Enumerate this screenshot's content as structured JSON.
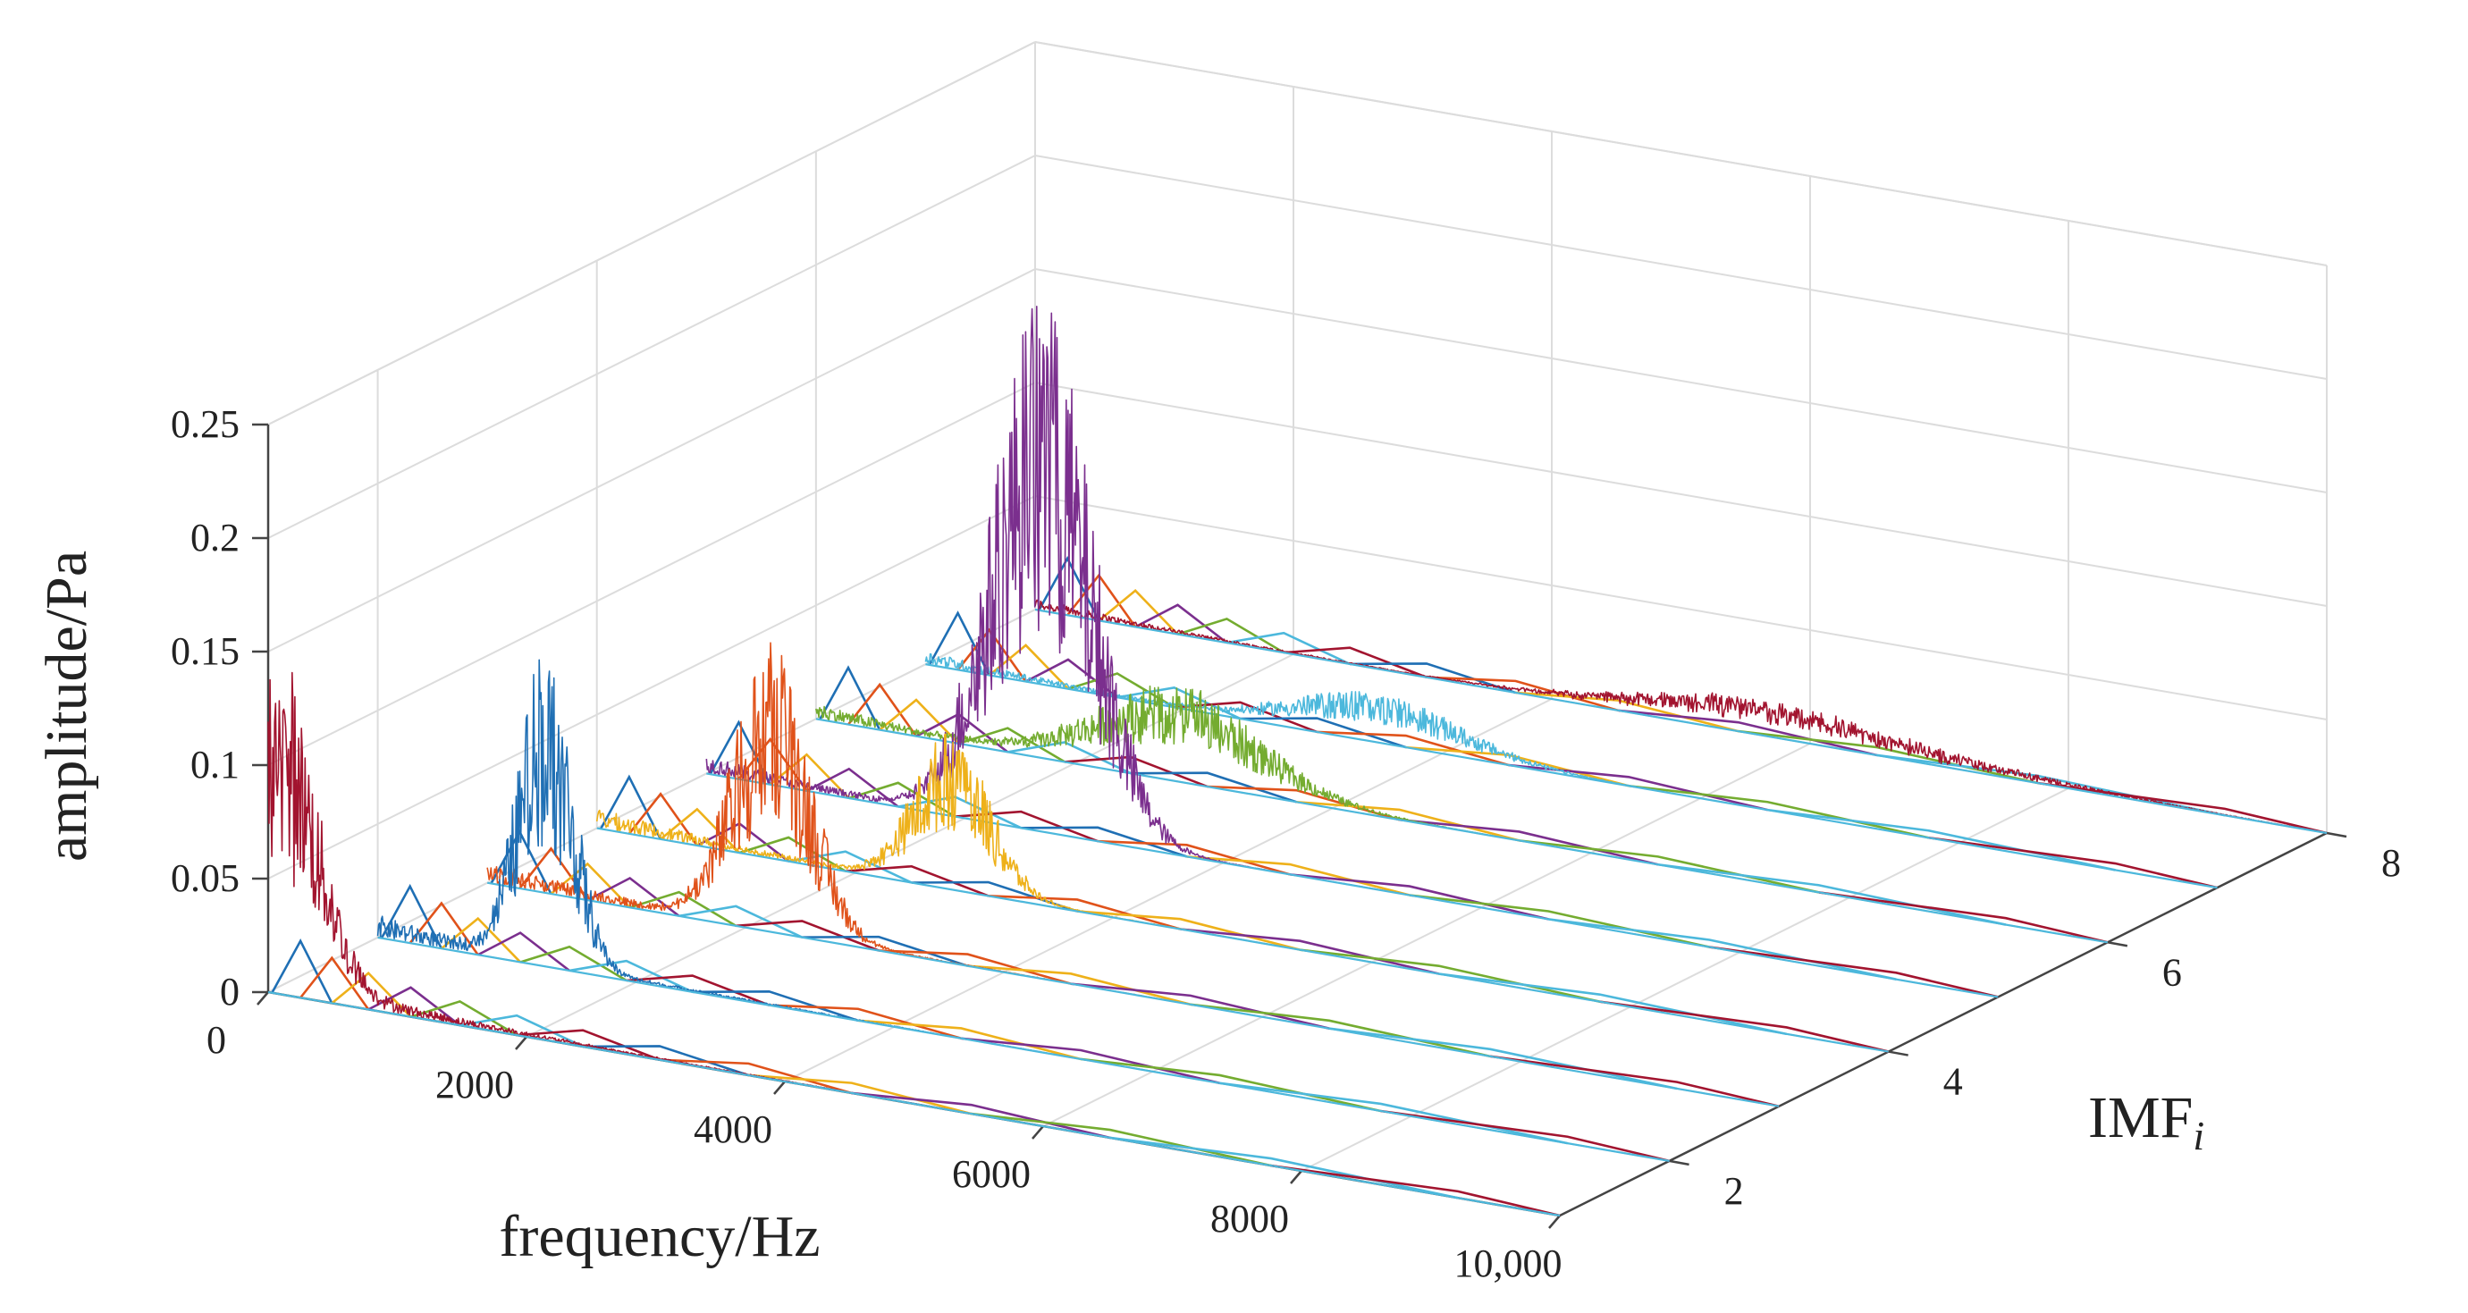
{
  "chart_data": {
    "type": "line",
    "projection": "3d-waterfall",
    "title": "",
    "xlabel": "frequency/Hz",
    "ylabel": "IMF",
    "ylabel_subscript": "i",
    "zlabel": "amplitude/Pa",
    "xlim": [
      0,
      10000
    ],
    "ylim": [
      1,
      8
    ],
    "zlim": [
      0,
      0.25
    ],
    "x_ticks": [
      0,
      2000,
      4000,
      6000,
      8000,
      10000
    ],
    "x_tick_labels": [
      "0",
      "2000",
      "4000",
      "6000",
      "8000",
      "10,000"
    ],
    "y_ticks": [
      2,
      4,
      6,
      8
    ],
    "y_tick_labels": [
      "2",
      "4",
      "6",
      "8"
    ],
    "z_ticks": [
      0,
      0.05,
      0.1,
      0.15,
      0.2,
      0.25
    ],
    "z_tick_labels": [
      "0",
      "0.05",
      "0.1",
      "0.15",
      "0.2",
      "0.25"
    ],
    "grid": true,
    "colors": {
      "blue": "#1f6fb4",
      "orange": "#e0521a",
      "yellow": "#eeb11a",
      "purple": "#7b2f8e",
      "green": "#74ac30",
      "cyan": "#4cb8dc",
      "red": "#a2142f"
    },
    "series": [
      {
        "name": "IMF 1",
        "imf": 1,
        "color": "#a2142f",
        "peak_frequency": 80,
        "peak_amplitude": 0.145,
        "band_width": 420,
        "base_level": 0.012
      },
      {
        "name": "IMF 2",
        "imf": 2,
        "color": "#1f6fb4",
        "peak_frequency": 1300,
        "peak_amplitude": 0.14,
        "band_width": 300,
        "base_level": 0.01
      },
      {
        "name": "IMF 3",
        "imf": 3,
        "color": "#e0521a",
        "peak_frequency": 2200,
        "peak_amplitude": 0.128,
        "band_width": 420,
        "base_level": 0.01
      },
      {
        "name": "IMF 4",
        "imf": 4,
        "color": "#eeb11a",
        "peak_frequency": 2750,
        "peak_amplitude": 0.07,
        "band_width": 420,
        "base_level": 0.009
      },
      {
        "name": "IMF 5",
        "imf": 5,
        "color": "#7b2f8e",
        "peak_frequency": 2600,
        "peak_amplitude": 0.237,
        "band_width": 550,
        "base_level": 0.008
      },
      {
        "name": "IMF 6",
        "imf": 6,
        "color": "#74ac30",
        "peak_frequency": 2800,
        "peak_amplitude": 0.042,
        "band_width": 900,
        "base_level": 0.007
      },
      {
        "name": "IMF 7",
        "imf": 7,
        "color": "#4cb8dc",
        "peak_frequency": 3500,
        "peak_amplitude": 0.022,
        "band_width": 900,
        "base_level": 0.006
      },
      {
        "name": "IMF 8",
        "imf": 8,
        "color": "#a2142f",
        "peak_frequency": 5500,
        "peak_amplitude": 0.012,
        "band_width": 1300,
        "base_level": 0.005
      }
    ]
  }
}
